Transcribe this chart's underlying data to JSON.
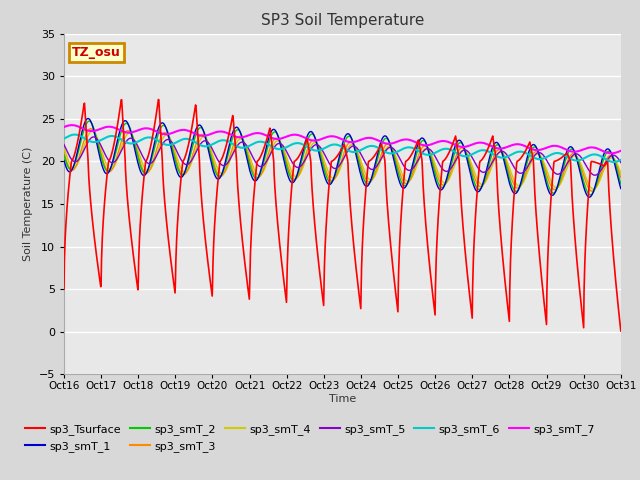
{
  "title": "SP3 Soil Temperature",
  "xlabel": "Time",
  "ylabel": "Soil Temperature (C)",
  "ylim": [
    -5,
    35
  ],
  "xlim": [
    0,
    15
  ],
  "xtick_labels": [
    "Oct 16",
    "Oct 17",
    "Oct 18",
    "Oct 19",
    "Oct 20",
    "Oct 21",
    "Oct 22",
    "Oct 23",
    "Oct 24",
    "Oct 25",
    "Oct 26",
    "Oct 27",
    "Oct 28",
    "Oct 29",
    "Oct 30",
    "Oct 31"
  ],
  "ytick_values": [
    -5,
    0,
    5,
    10,
    15,
    20,
    25,
    30,
    35
  ],
  "annotation_text": "TZ_osu",
  "annotation_color": "#cc0000",
  "annotation_bg": "#ffffcc",
  "annotation_border": "#cc8800",
  "series_colors": {
    "sp3_Tsurface": "#ff0000",
    "sp3_smT_1": "#0000cc",
    "sp3_smT_2": "#00cc00",
    "sp3_smT_3": "#ff8800",
    "sp3_smT_4": "#cccc00",
    "sp3_smT_5": "#8800cc",
    "sp3_smT_6": "#00cccc",
    "sp3_smT_7": "#ff00ff"
  },
  "fig_bg_color": "#d8d8d8",
  "plot_bg_color": "#e8e8e8",
  "grid_color": "#ffffff",
  "legend_fontsize": 8,
  "title_fontsize": 11,
  "tick_fontsize": 8
}
